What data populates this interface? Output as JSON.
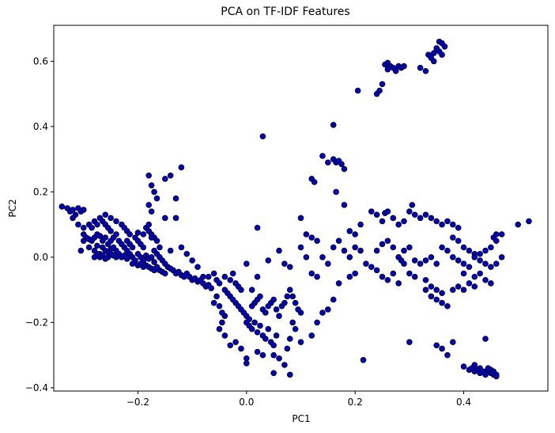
{
  "chart_data": {
    "type": "scatter",
    "title": "PCA on TF-IDF Features",
    "xlabel": "PC1",
    "ylabel": "PC2",
    "xlim": [
      -0.355,
      0.555
    ],
    "ylim": [
      -0.41,
      0.71
    ],
    "xticks": [
      -0.2,
      0.0,
      0.2,
      0.4
    ],
    "xtick_labels": [
      "−0.2",
      "0.0",
      "0.2",
      "0.4"
    ],
    "yticks": [
      -0.4,
      -0.2,
      0.0,
      0.2,
      0.4,
      0.6
    ],
    "ytick_labels": [
      "−0.4",
      "−0.2",
      "0.0",
      "0.2",
      "0.4",
      "0.6"
    ],
    "grid": false,
    "marker_fill": "#0000cc",
    "marker_edge": "#000000",
    "points": [
      [
        -0.34,
        0.155
      ],
      [
        -0.33,
        0.15
      ],
      [
        -0.325,
        0.14
      ],
      [
        -0.32,
        0.145
      ],
      [
        -0.315,
        0.13
      ],
      [
        -0.31,
        0.15
      ],
      [
        -0.305,
        0.14
      ],
      [
        -0.3,
        0.145
      ],
      [
        -0.32,
        0.12
      ],
      [
        -0.31,
        0.1
      ],
      [
        -0.3,
        0.09
      ],
      [
        -0.29,
        0.1
      ],
      [
        -0.285,
        0.09
      ],
      [
        -0.28,
        0.11
      ],
      [
        -0.275,
        0.1
      ],
      [
        -0.27,
        0.12
      ],
      [
        -0.265,
        0.11
      ],
      [
        -0.26,
        0.1
      ],
      [
        -0.255,
        0.09
      ],
      [
        -0.25,
        0.08
      ],
      [
        -0.3,
        0.07
      ],
      [
        -0.295,
        0.06
      ],
      [
        -0.29,
        0.055
      ],
      [
        -0.285,
        0.05
      ],
      [
        -0.28,
        0.06
      ],
      [
        -0.275,
        0.07
      ],
      [
        -0.27,
        0.065
      ],
      [
        -0.265,
        0.05
      ],
      [
        -0.26,
        0.06
      ],
      [
        -0.255,
        0.04
      ],
      [
        -0.25,
        0.05
      ],
      [
        -0.3,
        0.05
      ],
      [
        -0.305,
        0.02
      ],
      [
        -0.29,
        0.03
      ],
      [
        -0.28,
        0.02
      ],
      [
        -0.275,
        0.035
      ],
      [
        -0.27,
        0.01
      ],
      [
        -0.265,
        0.03
      ],
      [
        -0.26,
        0.02
      ],
      [
        -0.255,
        0.015
      ],
      [
        -0.25,
        0.025
      ],
      [
        -0.245,
        0.03
      ],
      [
        -0.24,
        0.02
      ],
      [
        -0.28,
        0.0
      ],
      [
        -0.275,
        0.01
      ],
      [
        -0.27,
        0.0
      ],
      [
        -0.265,
        0.005
      ],
      [
        -0.26,
        -0.005
      ],
      [
        -0.255,
        0.0
      ],
      [
        -0.25,
        0.01
      ],
      [
        -0.245,
        0.005
      ],
      [
        -0.24,
        0.0
      ],
      [
        -0.235,
        0.01
      ],
      [
        -0.23,
        0.0
      ],
      [
        -0.225,
        0.005
      ],
      [
        -0.22,
        -0.005
      ],
      [
        -0.245,
        0.06
      ],
      [
        -0.24,
        0.07
      ],
      [
        -0.235,
        0.05
      ],
      [
        -0.23,
        0.04
      ],
      [
        -0.225,
        0.03
      ],
      [
        -0.22,
        0.05
      ],
      [
        -0.215,
        0.04
      ],
      [
        -0.21,
        0.03
      ],
      [
        -0.205,
        0.06
      ],
      [
        -0.2,
        0.05
      ],
      [
        -0.195,
        0.04
      ],
      [
        -0.19,
        0.03
      ],
      [
        -0.22,
        0.02
      ],
      [
        -0.215,
        0.01
      ],
      [
        -0.21,
        0.0
      ],
      [
        -0.205,
        -0.01
      ],
      [
        -0.2,
        0.01
      ],
      [
        -0.195,
        0.0
      ],
      [
        -0.19,
        -0.01
      ],
      [
        -0.185,
        0.005
      ],
      [
        -0.18,
        -0.005
      ],
      [
        -0.175,
        0.0
      ],
      [
        -0.17,
        -0.015
      ],
      [
        -0.21,
        -0.02
      ],
      [
        -0.2,
        -0.025
      ],
      [
        -0.195,
        -0.02
      ],
      [
        -0.19,
        -0.03
      ],
      [
        -0.185,
        -0.025
      ],
      [
        -0.18,
        -0.03
      ],
      [
        -0.175,
        -0.035
      ],
      [
        -0.17,
        -0.04
      ],
      [
        -0.165,
        -0.03
      ],
      [
        -0.16,
        -0.04
      ],
      [
        -0.155,
        -0.045
      ],
      [
        -0.15,
        -0.05
      ],
      [
        -0.17,
        0.02
      ],
      [
        -0.165,
        0.01
      ],
      [
        -0.16,
        0.0
      ],
      [
        -0.155,
        -0.01
      ],
      [
        -0.15,
        -0.02
      ],
      [
        -0.145,
        -0.03
      ],
      [
        -0.14,
        -0.035
      ],
      [
        -0.135,
        -0.04
      ],
      [
        -0.13,
        -0.05
      ],
      [
        -0.125,
        -0.045
      ],
      [
        -0.12,
        -0.055
      ],
      [
        -0.115,
        -0.06
      ],
      [
        -0.26,
        0.13
      ],
      [
        -0.25,
        0.12
      ],
      [
        -0.24,
        0.11
      ],
      [
        -0.23,
        0.1
      ],
      [
        -0.225,
        0.09
      ],
      [
        -0.22,
        0.08
      ],
      [
        -0.215,
        0.07
      ],
      [
        -0.185,
        0.09
      ],
      [
        -0.18,
        0.08
      ],
      [
        -0.175,
        0.07
      ],
      [
        -0.17,
        0.06
      ],
      [
        -0.165,
        0.05
      ],
      [
        -0.18,
        0.25
      ],
      [
        -0.175,
        0.22
      ],
      [
        -0.17,
        0.2
      ],
      [
        -0.165,
        0.18
      ],
      [
        -0.18,
        0.16
      ],
      [
        -0.175,
        0.14
      ],
      [
        -0.15,
        0.24
      ],
      [
        -0.14,
        0.25
      ],
      [
        -0.12,
        0.275
      ],
      [
        -0.13,
        0.18
      ],
      [
        -0.13,
        0.12
      ],
      [
        -0.15,
        0.12
      ],
      [
        -0.18,
        0.1
      ],
      [
        -0.175,
        0.06
      ],
      [
        -0.19,
        0.07
      ],
      [
        -0.2,
        0.075
      ],
      [
        -0.16,
        0.03
      ],
      [
        -0.14,
        0.02
      ],
      [
        -0.12,
        0.03
      ],
      [
        -0.11,
        0.01
      ],
      [
        -0.1,
        -0.01
      ],
      [
        -0.09,
        -0.03
      ],
      [
        -0.08,
        -0.06
      ],
      [
        -0.07,
        -0.06
      ],
      [
        -0.06,
        -0.05
      ],
      [
        -0.055,
        -0.07
      ],
      [
        -0.05,
        -0.08
      ],
      [
        -0.04,
        -0.06
      ],
      [
        -0.03,
        -0.07
      ],
      [
        -0.025,
        -0.05
      ],
      [
        -0.02,
        -0.08
      ],
      [
        -0.015,
        -0.09
      ],
      [
        -0.01,
        -0.1
      ],
      [
        0.0,
        -0.02
      ],
      [
        0.01,
        -0.1
      ],
      [
        0.02,
        -0.06
      ],
      [
        -0.11,
        -0.05
      ],
      [
        -0.105,
        -0.06
      ],
      [
        -0.1,
        -0.07
      ],
      [
        -0.095,
        -0.065
      ],
      [
        -0.09,
        -0.075
      ],
      [
        -0.085,
        -0.07
      ],
      [
        -0.08,
        -0.08
      ],
      [
        -0.075,
        -0.09
      ],
      [
        -0.07,
        -0.085
      ],
      [
        -0.065,
        -0.095
      ],
      [
        -0.04,
        -0.1
      ],
      [
        -0.035,
        -0.11
      ],
      [
        -0.03,
        -0.12
      ],
      [
        -0.025,
        -0.13
      ],
      [
        -0.02,
        -0.14
      ],
      [
        -0.015,
        -0.15
      ],
      [
        -0.01,
        -0.16
      ],
      [
        -0.005,
        -0.17
      ],
      [
        0.0,
        -0.18
      ],
      [
        0.005,
        -0.19
      ],
      [
        0.01,
        -0.15
      ],
      [
        0.015,
        -0.14
      ],
      [
        0.02,
        -0.13
      ],
      [
        0.025,
        -0.12
      ],
      [
        0.03,
        -0.16
      ],
      [
        0.035,
        -0.17
      ],
      [
        0.04,
        -0.15
      ],
      [
        0.045,
        -0.14
      ],
      [
        0.05,
        -0.13
      ],
      [
        0.055,
        -0.16
      ],
      [
        0.06,
        -0.18
      ],
      [
        0.065,
        -0.15
      ],
      [
        0.07,
        -0.14
      ],
      [
        0.075,
        -0.12
      ],
      [
        0.0,
        -0.2
      ],
      [
        0.005,
        -0.21
      ],
      [
        0.01,
        -0.22
      ],
      [
        0.015,
        -0.2
      ],
      [
        0.02,
        -0.23
      ],
      [
        0.025,
        -0.21
      ],
      [
        0.03,
        -0.24
      ],
      [
        0.035,
        -0.25
      ],
      [
        0.04,
        -0.22
      ],
      [
        0.045,
        -0.26
      ],
      [
        0.05,
        -0.27
      ],
      [
        0.055,
        -0.24
      ],
      [
        -0.03,
        -0.27
      ],
      [
        -0.02,
        -0.26
      ],
      [
        -0.01,
        -0.28
      ],
      [
        0.0,
        -0.31
      ],
      [
        0.0,
        -0.325
      ],
      [
        0.02,
        -0.29
      ],
      [
        0.03,
        -0.3
      ],
      [
        0.05,
        -0.3
      ],
      [
        0.06,
        -0.31
      ],
      [
        0.07,
        -0.33
      ],
      [
        0.08,
        -0.36
      ],
      [
        0.05,
        -0.355
      ],
      [
        -0.04,
        -0.18
      ],
      [
        -0.045,
        -0.2
      ],
      [
        -0.05,
        -0.22
      ],
      [
        -0.04,
        -0.24
      ],
      [
        -0.06,
        -0.14
      ],
      [
        -0.055,
        -0.12
      ],
      [
        -0.05,
        -0.15
      ],
      [
        -0.045,
        -0.17
      ],
      [
        0.08,
        -0.1
      ],
      [
        0.085,
        -0.12
      ],
      [
        0.09,
        -0.14
      ],
      [
        0.095,
        -0.16
      ],
      [
        0.1,
        -0.17
      ],
      [
        0.085,
        -0.2
      ],
      [
        0.09,
        -0.22
      ],
      [
        0.08,
        -0.25
      ],
      [
        0.075,
        -0.28
      ],
      [
        0.1,
        -0.26
      ],
      [
        0.12,
        -0.24
      ],
      [
        0.13,
        -0.2
      ],
      [
        0.03,
        0.37
      ],
      [
        0.02,
        0.09
      ],
      [
        0.04,
        -0.01
      ],
      [
        0.06,
        0.02
      ],
      [
        0.07,
        -0.02
      ],
      [
        0.08,
        -0.03
      ],
      [
        0.1,
        0.12
      ],
      [
        0.11,
        0.07
      ],
      [
        0.12,
        0.06
      ],
      [
        0.13,
        0.05
      ],
      [
        0.1,
        0.03
      ],
      [
        0.11,
        0.0
      ],
      [
        0.12,
        -0.05
      ],
      [
        0.13,
        -0.06
      ],
      [
        0.14,
        0.0
      ],
      [
        0.15,
        -0.02
      ],
      [
        0.16,
        0.03
      ],
      [
        0.17,
        0.05
      ],
      [
        0.18,
        0.02
      ],
      [
        0.19,
        0.0
      ],
      [
        0.17,
        -0.08
      ],
      [
        0.16,
        -0.13
      ],
      [
        0.15,
        -0.16
      ],
      [
        0.14,
        -0.17
      ],
      [
        0.12,
        0.24
      ],
      [
        0.125,
        0.23
      ],
      [
        0.14,
        0.31
      ],
      [
        0.15,
        0.29
      ],
      [
        0.16,
        0.3
      ],
      [
        0.165,
        0.29
      ],
      [
        0.17,
        0.295
      ],
      [
        0.175,
        0.285
      ],
      [
        0.18,
        0.27
      ],
      [
        0.16,
        0.405
      ],
      [
        0.165,
        0.2
      ],
      [
        0.18,
        0.16
      ],
      [
        0.19,
        0.08
      ],
      [
        0.2,
        0.07
      ],
      [
        0.205,
        0.51
      ],
      [
        0.21,
        0.1
      ],
      [
        0.2,
        0.03
      ],
      [
        0.21,
        0.02
      ],
      [
        0.22,
        -0.02
      ],
      [
        0.23,
        -0.03
      ],
      [
        0.24,
        0.02
      ],
      [
        0.215,
        -0.315
      ],
      [
        0.2,
        -0.05
      ],
      [
        0.19,
        -0.06
      ],
      [
        0.24,
        0.5
      ],
      [
        0.245,
        0.51
      ],
      [
        0.25,
        0.53
      ],
      [
        0.255,
        0.59
      ],
      [
        0.26,
        0.595
      ],
      [
        0.265,
        0.585
      ],
      [
        0.27,
        0.58
      ],
      [
        0.275,
        0.57
      ],
      [
        0.28,
        0.585
      ],
      [
        0.285,
        0.58
      ],
      [
        0.29,
        0.585
      ],
      [
        0.26,
        0.575
      ],
      [
        0.32,
        0.58
      ],
      [
        0.33,
        0.57
      ],
      [
        0.335,
        0.62
      ],
      [
        0.34,
        0.61
      ],
      [
        0.345,
        0.625
      ],
      [
        0.35,
        0.64
      ],
      [
        0.355,
        0.66
      ],
      [
        0.36,
        0.655
      ],
      [
        0.365,
        0.645
      ],
      [
        0.36,
        0.62
      ],
      [
        0.355,
        0.63
      ],
      [
        0.345,
        0.6
      ],
      [
        0.23,
        0.14
      ],
      [
        0.24,
        0.13
      ],
      [
        0.25,
        0.11
      ],
      [
        0.255,
        0.135
      ],
      [
        0.26,
        0.14
      ],
      [
        0.27,
        0.12
      ],
      [
        0.28,
        0.1
      ],
      [
        0.29,
        0.11
      ],
      [
        0.3,
        0.14
      ],
      [
        0.305,
        0.16
      ],
      [
        0.31,
        0.13
      ],
      [
        0.32,
        0.12
      ],
      [
        0.25,
        0.04
      ],
      [
        0.26,
        0.05
      ],
      [
        0.27,
        0.03
      ],
      [
        0.28,
        0.0
      ],
      [
        0.285,
        -0.01
      ],
      [
        0.29,
        0.02
      ],
      [
        0.3,
        0.03
      ],
      [
        0.31,
        -0.01
      ],
      [
        0.32,
        -0.02
      ],
      [
        0.33,
        -0.01
      ],
      [
        0.34,
        0.0
      ],
      [
        0.35,
        -0.02
      ],
      [
        0.24,
        -0.04
      ],
      [
        0.25,
        -0.06
      ],
      [
        0.26,
        -0.07
      ],
      [
        0.27,
        -0.05
      ],
      [
        0.28,
        -0.08
      ],
      [
        0.29,
        -0.02
      ],
      [
        0.3,
        -0.05
      ],
      [
        0.31,
        -0.06
      ],
      [
        0.33,
        -0.07
      ],
      [
        0.34,
        -0.09
      ],
      [
        0.35,
        -0.1
      ],
      [
        0.36,
        -0.11
      ],
      [
        0.33,
        0.13
      ],
      [
        0.34,
        0.12
      ],
      [
        0.35,
        0.11
      ],
      [
        0.36,
        0.1
      ],
      [
        0.37,
        0.11
      ],
      [
        0.38,
        0.1
      ],
      [
        0.39,
        0.09
      ],
      [
        0.38,
        0.06
      ],
      [
        0.39,
        0.05
      ],
      [
        0.4,
        0.03
      ],
      [
        0.41,
        0.02
      ],
      [
        0.42,
        0.01
      ],
      [
        0.36,
        0.03
      ],
      [
        0.37,
        0.02
      ],
      [
        0.38,
        0.0
      ],
      [
        0.39,
        -0.01
      ],
      [
        0.4,
        -0.02
      ],
      [
        0.41,
        -0.03
      ],
      [
        0.42,
        0.0
      ],
      [
        0.43,
        0.01
      ],
      [
        0.44,
        0.02
      ],
      [
        0.45,
        0.03
      ],
      [
        0.46,
        0.05
      ],
      [
        0.47,
        0.07
      ],
      [
        0.43,
        -0.01
      ],
      [
        0.44,
        -0.02
      ],
      [
        0.45,
        -0.03
      ],
      [
        0.46,
        -0.02
      ],
      [
        0.47,
        0.0
      ],
      [
        0.455,
        0.06
      ],
      [
        0.46,
        0.07
      ],
      [
        0.5,
        0.1
      ],
      [
        0.52,
        0.11
      ],
      [
        0.4,
        -0.05
      ],
      [
        0.41,
        -0.08
      ],
      [
        0.42,
        -0.09
      ],
      [
        0.33,
        -0.1
      ],
      [
        0.34,
        -0.12
      ],
      [
        0.35,
        -0.13
      ],
      [
        0.36,
        -0.14
      ],
      [
        0.37,
        -0.15
      ],
      [
        0.38,
        -0.1
      ],
      [
        0.39,
        -0.09
      ],
      [
        0.4,
        -0.1
      ],
      [
        0.42,
        -0.06
      ],
      [
        0.43,
        -0.05
      ],
      [
        0.44,
        -0.07
      ],
      [
        0.45,
        -0.08
      ],
      [
        0.3,
        -0.26
      ],
      [
        0.35,
        -0.27
      ],
      [
        0.36,
        -0.28
      ],
      [
        0.37,
        -0.3
      ],
      [
        0.38,
        -0.26
      ],
      [
        0.44,
        -0.25
      ],
      [
        0.42,
        -0.33
      ],
      [
        0.43,
        -0.34
      ],
      [
        0.44,
        -0.35
      ],
      [
        0.45,
        -0.355
      ],
      [
        0.455,
        -0.36
      ],
      [
        0.46,
        -0.365
      ],
      [
        0.4,
        -0.335
      ],
      [
        0.41,
        -0.345
      ],
      [
        0.415,
        -0.34
      ],
      [
        0.42,
        -0.35
      ],
      [
        0.425,
        -0.345
      ],
      [
        0.43,
        -0.355
      ],
      [
        0.435,
        -0.35
      ],
      [
        0.44,
        -0.36
      ],
      [
        0.445,
        -0.34
      ],
      [
        0.45,
        -0.345
      ],
      [
        0.455,
        -0.35
      ],
      [
        0.46,
        -0.36
      ]
    ]
  }
}
